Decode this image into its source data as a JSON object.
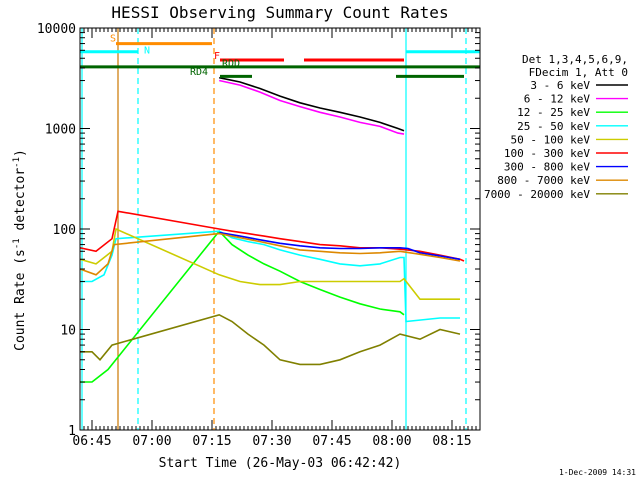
{
  "chart_data": {
    "type": "line",
    "title": "HESSI Observing Summary Count Rates",
    "xlabel": "Start Time (26-May-03 06:42:42)",
    "ylabel": "Count Rate (s⁻¹ detector⁻¹)",
    "ylabel_parts": [
      "Count Rate (s",
      "-1",
      " detector",
      "-1",
      ")"
    ],
    "y_scale": "log",
    "ylim": [
      1,
      10000
    ],
    "xlim_minutes": [
      0,
      100
    ],
    "x_ticks": [
      {
        "min": 3,
        "label": "06:45"
      },
      {
        "min": 18,
        "label": "07:00"
      },
      {
        "min": 33,
        "label": "07:15"
      },
      {
        "min": 48,
        "label": "07:30"
      },
      {
        "min": 63,
        "label": "07:45"
      },
      {
        "min": 78,
        "label": "08:00"
      },
      {
        "min": 93,
        "label": "08:15"
      }
    ],
    "y_ticks": [
      {
        "v": 1,
        "label": "1"
      },
      {
        "v": 10,
        "label": "10"
      },
      {
        "v": 100,
        "label": "100"
      },
      {
        "v": 1000,
        "label": "1000"
      },
      {
        "v": 10000,
        "label": "10000"
      }
    ],
    "legend_header": [
      "Det 1,3,4,5,6,9,",
      "FDecim 1, Att 0"
    ],
    "series": [
      {
        "name": "3 - 6 keV",
        "color": "#000000",
        "points": [
          [
            34.8,
            3200
          ],
          [
            40,
            2900
          ],
          [
            45,
            2500
          ],
          [
            50,
            2100
          ],
          [
            55,
            1800
          ],
          [
            60,
            1600
          ],
          [
            65,
            1450
          ],
          [
            70,
            1300
          ],
          [
            75,
            1150
          ],
          [
            79.5,
            1000
          ],
          [
            81,
            950
          ]
        ]
      },
      {
        "name": "6 - 12 keV",
        "color": "#ff00ff",
        "points": [
          [
            34.8,
            3000
          ],
          [
            40,
            2700
          ],
          [
            45,
            2300
          ],
          [
            50,
            1900
          ],
          [
            55,
            1650
          ],
          [
            60,
            1450
          ],
          [
            65,
            1300
          ],
          [
            70,
            1150
          ],
          [
            75,
            1050
          ],
          [
            79.5,
            900
          ],
          [
            81,
            880
          ]
        ]
      },
      {
        "name": "12 - 25 keV",
        "color": "#00ff00",
        "points": [
          [
            0,
            3
          ],
          [
            3,
            3
          ],
          [
            7,
            4
          ],
          [
            34.8,
            95
          ],
          [
            38,
            70
          ],
          [
            42,
            55
          ],
          [
            46,
            45
          ],
          [
            50,
            38
          ],
          [
            55,
            30
          ],
          [
            60,
            25
          ],
          [
            65,
            21
          ],
          [
            70,
            18
          ],
          [
            75,
            16
          ],
          [
            80,
            15
          ],
          [
            81,
            14
          ]
        ]
      },
      {
        "name": "25 - 50 keV",
        "color": "#00ffff",
        "points": [
          [
            0,
            30
          ],
          [
            3,
            30
          ],
          [
            6,
            35
          ],
          [
            8,
            55
          ],
          [
            9,
            80
          ],
          [
            34.8,
            95
          ],
          [
            38,
            82
          ],
          [
            42,
            75
          ],
          [
            46,
            70
          ],
          [
            50,
            62
          ],
          [
            55,
            55
          ],
          [
            60,
            50
          ],
          [
            65,
            45
          ],
          [
            70,
            43
          ],
          [
            75,
            45
          ],
          [
            80,
            52
          ],
          [
            81,
            52
          ],
          [
            81.5,
            12
          ],
          [
            90,
            13
          ],
          [
            95,
            13
          ]
        ]
      },
      {
        "name": "50 - 100 keV",
        "color": "#cccc00",
        "points": [
          [
            0,
            50
          ],
          [
            4,
            45
          ],
          [
            8,
            60
          ],
          [
            9,
            100
          ],
          [
            34.8,
            35
          ],
          [
            40,
            30
          ],
          [
            45,
            28
          ],
          [
            50,
            28
          ],
          [
            55,
            30
          ],
          [
            60,
            30
          ],
          [
            65,
            30
          ],
          [
            70,
            30
          ],
          [
            75,
            30
          ],
          [
            80,
            30
          ],
          [
            81,
            32
          ],
          [
            85,
            20
          ],
          [
            90,
            20
          ],
          [
            95,
            20
          ]
        ]
      },
      {
        "name": "100 - 300 keV",
        "color": "#ff0000",
        "points": [
          [
            0,
            65
          ],
          [
            4,
            60
          ],
          [
            8,
            80
          ],
          [
            9.5,
            150
          ],
          [
            34.8,
            100
          ],
          [
            38,
            95
          ],
          [
            42,
            90
          ],
          [
            46,
            85
          ],
          [
            50,
            80
          ],
          [
            55,
            75
          ],
          [
            60,
            70
          ],
          [
            65,
            68
          ],
          [
            70,
            65
          ],
          [
            75,
            65
          ],
          [
            80,
            63
          ],
          [
            85,
            60
          ],
          [
            90,
            55
          ],
          [
            95,
            50
          ],
          [
            96,
            48
          ]
        ]
      },
      {
        "name": "300 - 800 keV",
        "color": "#0000ff",
        "points": [
          [
            34.8,
            92
          ],
          [
            40,
            85
          ],
          [
            45,
            78
          ],
          [
            50,
            72
          ],
          [
            55,
            68
          ],
          [
            60,
            65
          ],
          [
            65,
            64
          ],
          [
            70,
            64
          ],
          [
            75,
            65
          ],
          [
            80,
            65
          ],
          [
            82,
            64
          ],
          [
            85,
            58
          ],
          [
            90,
            54
          ],
          [
            95,
            50
          ]
        ]
      },
      {
        "name": "800 - 7000 keV",
        "color": "#dd8800",
        "points": [
          [
            0,
            40
          ],
          [
            4,
            35
          ],
          [
            7,
            45
          ],
          [
            8.5,
            70
          ],
          [
            34.8,
            90
          ],
          [
            40,
            82
          ],
          [
            45,
            75
          ],
          [
            50,
            68
          ],
          [
            55,
            62
          ],
          [
            60,
            60
          ],
          [
            65,
            58
          ],
          [
            70,
            57
          ],
          [
            75,
            58
          ],
          [
            80,
            60
          ],
          [
            85,
            56
          ],
          [
            90,
            52
          ],
          [
            95,
            48
          ]
        ]
      },
      {
        "name": "7000 - 20000 keV",
        "color": "#808000",
        "points": [
          [
            0,
            6
          ],
          [
            3,
            6
          ],
          [
            5,
            5
          ],
          [
            8,
            7
          ],
          [
            34.8,
            14
          ],
          [
            38,
            12
          ],
          [
            42,
            9
          ],
          [
            46,
            7
          ],
          [
            50,
            5
          ],
          [
            55,
            4.5
          ],
          [
            60,
            4.5
          ],
          [
            65,
            5
          ],
          [
            70,
            6
          ],
          [
            75,
            7
          ],
          [
            80,
            9
          ],
          [
            85,
            8
          ],
          [
            90,
            10
          ],
          [
            95,
            9
          ]
        ]
      }
    ],
    "flag_bars": [
      {
        "label": "S",
        "color": "#ff8c00",
        "y": 7000,
        "segments": [
          [
            9,
            33
          ]
        ]
      },
      {
        "label": "N",
        "color": "#00ffff",
        "y": 5800,
        "segments": [
          [
            0,
            14.5
          ],
          [
            81.5,
            100
          ]
        ]
      },
      {
        "label": "F",
        "color": "#ff0000",
        "y": 4800,
        "segments": [
          [
            35,
            51
          ],
          [
            56,
            81
          ]
        ]
      },
      {
        "label": "",
        "color": "#ff0000",
        "y": 4200,
        "segments": []
      },
      {
        "label": "RDD",
        "color": "#006400",
        "y": 4100,
        "segments": [
          [
            0,
            100
          ]
        ]
      },
      {
        "label": "RD4",
        "color": "#006400",
        "y": 3300,
        "segments": [
          [
            35,
            43
          ],
          [
            79,
            96
          ]
        ]
      }
    ],
    "vlines": [
      {
        "min": 0.5,
        "color": "#00ffff",
        "dash": false
      },
      {
        "min": 9.5,
        "color": "#cc7700",
        "dash": false
      },
      {
        "min": 14.5,
        "color": "#00ffff",
        "dash": true
      },
      {
        "min": 33.5,
        "color": "#ff8c00",
        "dash": true
      },
      {
        "min": 81.5,
        "color": "#00ffff",
        "dash": false
      },
      {
        "min": 96.5,
        "color": "#00ffff",
        "dash": true
      }
    ]
  },
  "timestamp": "1-Dec-2009 14:31"
}
